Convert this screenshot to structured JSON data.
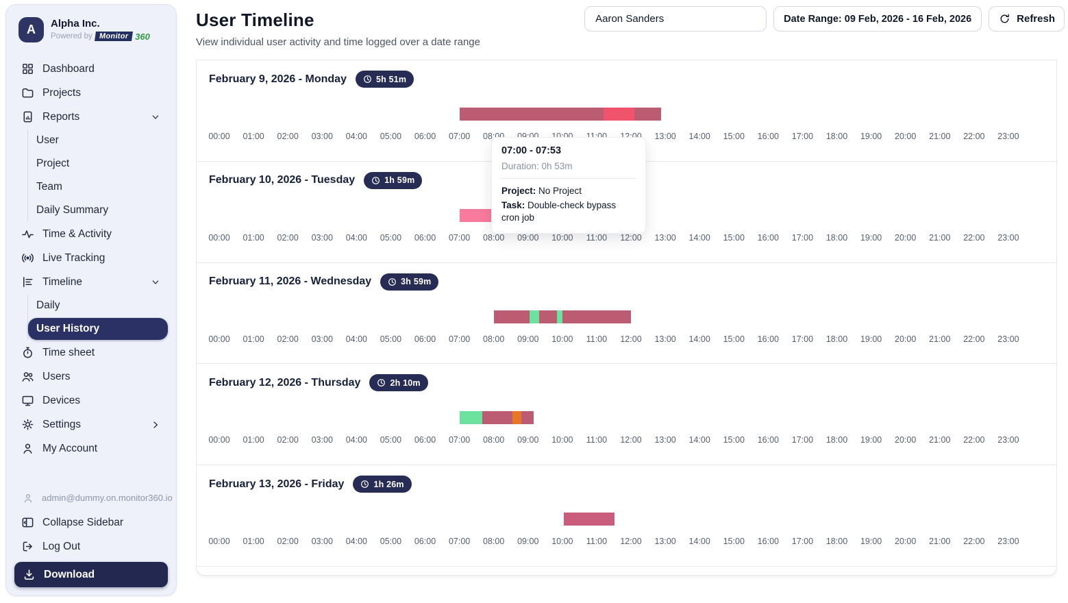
{
  "sidebar": {
    "logo_letter": "A",
    "company": "Alpha Inc.",
    "powered_by": "Powered by",
    "brand": "Monitor",
    "brand_suffix": "360",
    "items": [
      {
        "label": "Dashboard",
        "icon": "dashboard",
        "type": "item"
      },
      {
        "label": "Projects",
        "icon": "projects",
        "type": "item"
      },
      {
        "label": "Reports",
        "icon": "reports",
        "type": "item",
        "chevron": "down"
      },
      {
        "label": "User",
        "type": "sub"
      },
      {
        "label": "Project",
        "type": "sub"
      },
      {
        "label": "Team",
        "type": "sub"
      },
      {
        "label": "Daily Summary",
        "type": "sub"
      },
      {
        "label": "Time & Activity",
        "icon": "activity",
        "type": "item"
      },
      {
        "label": "Live Tracking",
        "icon": "live-tracking",
        "type": "item"
      },
      {
        "label": "Timeline",
        "icon": "timeline",
        "type": "item",
        "chevron": "down"
      },
      {
        "label": "Daily",
        "type": "sub"
      },
      {
        "label": "User History",
        "type": "sub",
        "selected": true
      },
      {
        "label": "Time sheet",
        "icon": "timesheet",
        "type": "item"
      },
      {
        "label": "Users",
        "icon": "users",
        "type": "item"
      },
      {
        "label": "Devices",
        "icon": "devices",
        "type": "item"
      },
      {
        "label": "Settings",
        "icon": "settings",
        "type": "item",
        "chevron": "right"
      },
      {
        "label": "My Account",
        "icon": "account",
        "type": "item"
      }
    ],
    "email": "admin@dummy.on.monitor360.io",
    "collapse_label": "Collapse Sidebar",
    "logout_label": "Log Out",
    "download_label": "Download"
  },
  "header": {
    "title": "User Timeline",
    "subtitle": "View individual user activity and time logged over a date range",
    "user_filter_value": "Aaron Sanders",
    "date_range_label": "Date Range: 09 Feb, 2026 - 16 Feb, 2026",
    "refresh_label": "Refresh"
  },
  "tooltip": {
    "time_range": "07:00 - 07:53",
    "duration": "Duration: 0h 53m",
    "project_label": "Project:",
    "project": "No Project",
    "task_label": "Task:",
    "task": "Double-check bypass cron job"
  },
  "hours": [
    "00:00",
    "01:00",
    "02:00",
    "03:00",
    "04:00",
    "05:00",
    "06:00",
    "07:00",
    "08:00",
    "09:00",
    "10:00",
    "11:00",
    "12:00",
    "13:00",
    "14:00",
    "15:00",
    "16:00",
    "17:00",
    "18:00",
    "19:00",
    "20:00",
    "21:00",
    "22:00",
    "23:00"
  ],
  "days": [
    {
      "date": "February 9, 2026 - Monday",
      "duration": "5h 51m",
      "segments": [
        {
          "start": 7.0,
          "end": 11.2,
          "color": "#bc5c72"
        },
        {
          "start": 11.2,
          "end": 12.1,
          "color": "#f0546c"
        },
        {
          "start": 12.1,
          "end": 12.87,
          "color": "#bc5c72"
        }
      ]
    },
    {
      "date": "February 10, 2026 - Tuesday",
      "duration": "1h 59m",
      "segments": [
        {
          "start": 7.0,
          "end": 8.0,
          "color": "#f87b9d"
        },
        {
          "start": 8.0,
          "end": 9.0,
          "color": "#b3566e"
        }
      ]
    },
    {
      "date": "February 11, 2026 - Wednesday",
      "duration": "3h 59m",
      "segments": [
        {
          "start": 8.0,
          "end": 9.05,
          "color": "#bc5c72"
        },
        {
          "start": 9.05,
          "end": 9.33,
          "color": "#6ce29e"
        },
        {
          "start": 9.33,
          "end": 9.85,
          "color": "#bc5c72"
        },
        {
          "start": 9.85,
          "end": 10.0,
          "color": "#6ce29e"
        },
        {
          "start": 10.0,
          "end": 12.0,
          "color": "#bc5c72"
        }
      ]
    },
    {
      "date": "February 12, 2026 - Thursday",
      "duration": "2h 10m",
      "segments": [
        {
          "start": 7.0,
          "end": 7.67,
          "color": "#6ce29e"
        },
        {
          "start": 7.67,
          "end": 8.55,
          "color": "#bc5c72"
        },
        {
          "start": 8.55,
          "end": 8.8,
          "color": "#e77628"
        },
        {
          "start": 8.8,
          "end": 9.17,
          "color": "#bc5c72"
        }
      ]
    },
    {
      "date": "February 13, 2026 - Friday",
      "duration": "1h 26m",
      "segments": [
        {
          "start": 10.05,
          "end": 11.52,
          "color": "#c95d7b"
        }
      ]
    }
  ],
  "colors": {
    "accent_navy": "#272c55",
    "sidebar_bg": "#eef0fa",
    "selected_pill": "#2b3164",
    "brand_green": "#2f9e44",
    "rose": "#bc5c72",
    "bright_red": "#f0546c",
    "light_pink": "#f87b9d",
    "green": "#6ce29e",
    "orange": "#e77628"
  }
}
